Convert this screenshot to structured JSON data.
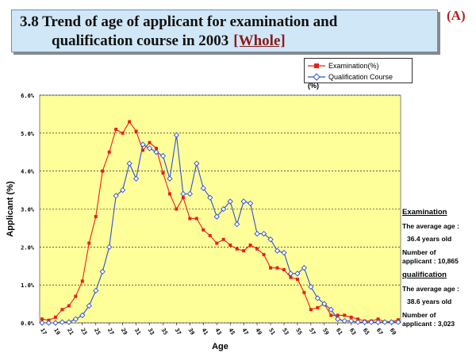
{
  "title": {
    "line1": "3.8 Trend of age of applicant for examination and",
    "line2": "qualification course in 2003",
    "tag": "[Whole]"
  },
  "corner_label": "(A)",
  "legend": {
    "unit": "(%)"
  },
  "side_panel": {
    "exam_head": "Examination",
    "exam_avg_label": "The average age :",
    "exam_avg_value": "36.4 years old",
    "exam_num_label": "Number of",
    "exam_num_value": "applicant : 10,865",
    "qual_head": "qualification",
    "qual_avg_label": "The average age :",
    "qual_avg_value": "38.6 years old",
    "qual_num_label": "Number of",
    "qual_num_value": "applicant : 3,023"
  },
  "colors": {
    "exam": "#e8201c",
    "qual": "#2d4fd6",
    "plot_bg": "#ffff99",
    "title_bg": "#cfe7f7"
  },
  "chart_data": {
    "type": "line",
    "xlabel": "Age",
    "ylabel": "Applicant (%)",
    "ylim": [
      0,
      6
    ],
    "yticks": [
      "0.0%",
      "1.0%",
      "2.0%",
      "3.0%",
      "4.0%",
      "5.0%",
      "6.0%"
    ],
    "xtick_labels": [
      "17",
      "19",
      "21",
      "23",
      "25",
      "27",
      "29",
      "31",
      "33",
      "35",
      "37",
      "39",
      "41",
      "43",
      "45",
      "47",
      "49",
      "51",
      "53",
      "55",
      "57",
      "59",
      "61",
      "63",
      "65",
      "67",
      "69"
    ],
    "grid": "horizontal",
    "legend_position": "top-right",
    "x": [
      17,
      18,
      19,
      20,
      21,
      22,
      23,
      24,
      25,
      26,
      27,
      28,
      29,
      30,
      31,
      32,
      33,
      34,
      35,
      36,
      37,
      38,
      39,
      40,
      41,
      42,
      43,
      44,
      45,
      46,
      47,
      48,
      49,
      50,
      51,
      52,
      53,
      54,
      55,
      56,
      57,
      58,
      59,
      60,
      61,
      62,
      63,
      64,
      65,
      66,
      67,
      68,
      69,
      70
    ],
    "series": [
      {
        "name": "Examination(%)",
        "values": [
          0.1,
          0.07,
          0.15,
          0.35,
          0.45,
          0.7,
          1.1,
          2.1,
          2.8,
          4.0,
          4.5,
          5.1,
          5.0,
          5.3,
          5.05,
          4.55,
          4.75,
          4.6,
          3.95,
          3.4,
          3.0,
          3.3,
          2.75,
          2.75,
          2.45,
          2.3,
          2.1,
          2.2,
          2.05,
          1.95,
          1.9,
          2.05,
          1.95,
          1.8,
          1.45,
          1.45,
          1.4,
          1.2,
          1.15,
          0.8,
          0.35,
          0.4,
          0.5,
          0.2,
          0.2,
          0.2,
          0.15,
          0.1,
          0.05,
          0.05,
          0.1,
          0.03,
          0.03,
          0.08
        ]
      },
      {
        "name": "Qualification Course",
        "values": [
          0.0,
          0.0,
          0.0,
          0.02,
          0.02,
          0.1,
          0.2,
          0.45,
          0.85,
          1.35,
          2.0,
          3.35,
          3.5,
          4.2,
          3.8,
          4.7,
          4.6,
          4.5,
          4.4,
          3.8,
          4.95,
          3.4,
          3.4,
          4.2,
          3.55,
          3.3,
          2.8,
          3.0,
          3.2,
          2.6,
          3.2,
          3.15,
          2.35,
          2.35,
          2.2,
          1.9,
          1.85,
          1.3,
          1.3,
          1.45,
          0.95,
          0.65,
          0.5,
          0.35,
          0.1,
          0.05,
          0.05,
          0.02,
          0.02,
          0.02,
          0.02,
          0.02,
          0.02,
          0.02
        ]
      }
    ]
  }
}
